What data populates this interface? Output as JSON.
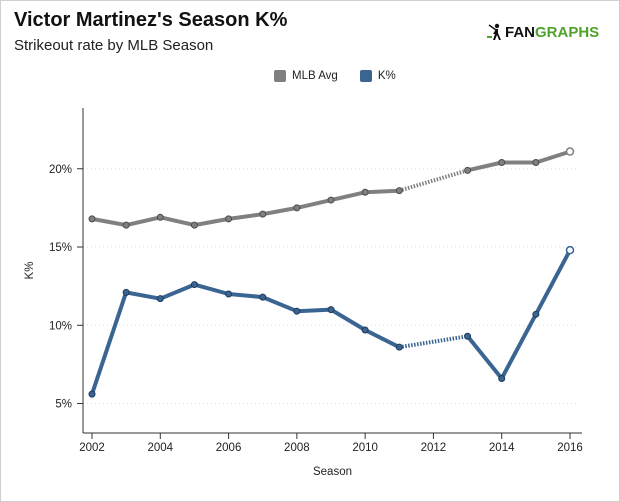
{
  "header": {
    "title": "Victor Martinez's Season K%",
    "subtitle": "Strikeout rate by MLB Season"
  },
  "logo": {
    "text_a": "FAN",
    "text_b": "GRAPHS"
  },
  "colors": {
    "mlb": "#808080",
    "k": "#3a6592",
    "grid_dot": "#dddddd",
    "axis": "#333333"
  },
  "chart_data": {
    "type": "line",
    "title": "Victor Martinez's Season K%",
    "subtitle": "Strikeout rate by MLB Season",
    "xlabel": "Season",
    "ylabel": "K%",
    "xlim": [
      2002,
      2016
    ],
    "ylim": [
      3.5,
      23.5
    ],
    "xticks": [
      2002,
      2004,
      2006,
      2008,
      2010,
      2012,
      2014,
      2016
    ],
    "xtick_labels": [
      "2002",
      "2004",
      "2006",
      "2008",
      "2010",
      "2012",
      "2014",
      "2016"
    ],
    "yticks": [
      5,
      10,
      15,
      20
    ],
    "ytick_labels": [
      "5%",
      "10%",
      "15%",
      "20%"
    ],
    "legend": [
      "MLB Avg",
      "K%"
    ],
    "series": [
      {
        "name": "MLB Avg",
        "x": [
          2002,
          2003,
          2004,
          2005,
          2006,
          2007,
          2008,
          2009,
          2010,
          2011,
          2013,
          2014,
          2015,
          2016
        ],
        "values": [
          16.8,
          16.4,
          16.9,
          16.4,
          16.8,
          17.1,
          17.5,
          18.0,
          18.5,
          18.6,
          19.9,
          20.4,
          20.4,
          21.1
        ],
        "dotted_gap": [
          2011,
          2013
        ]
      },
      {
        "name": "K%",
        "x": [
          2002,
          2003,
          2004,
          2005,
          2006,
          2007,
          2008,
          2009,
          2010,
          2011,
          2013,
          2014,
          2015,
          2016
        ],
        "values": [
          5.6,
          12.1,
          11.7,
          12.6,
          12.0,
          11.8,
          10.9,
          11.0,
          9.7,
          8.6,
          9.3,
          6.6,
          10.7,
          14.8
        ],
        "dotted_gap": [
          2011,
          2013
        ]
      }
    ]
  }
}
